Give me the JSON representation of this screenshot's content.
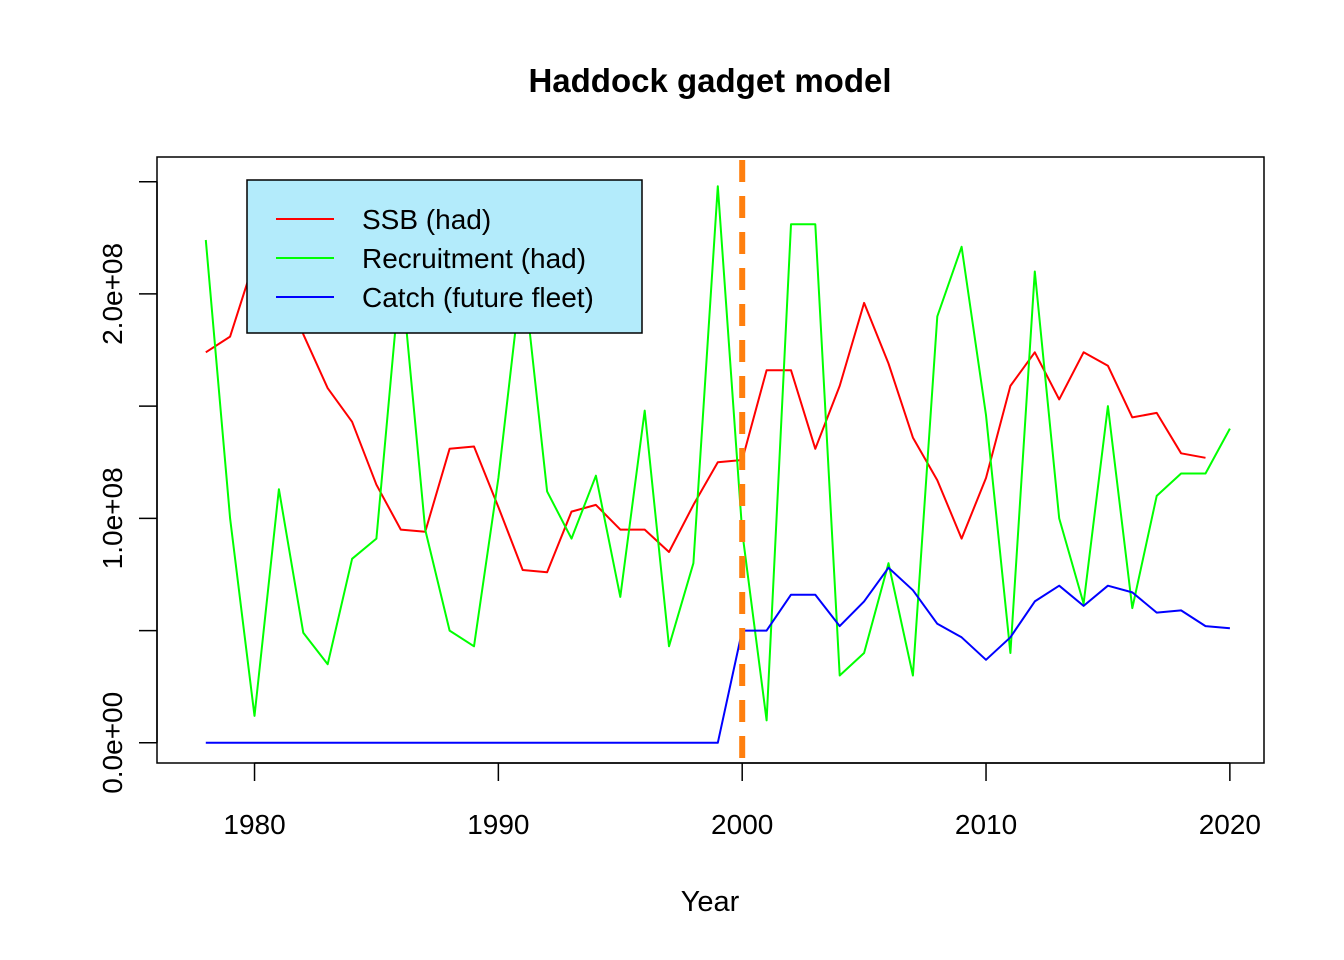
{
  "chart_data": {
    "type": "line",
    "title": "Haddock gadget model",
    "xlabel": "Year",
    "ylabel": "",
    "xlim": [
      1976,
      2021.4
    ],
    "ylim": [
      -9000000,
      261000000
    ],
    "x_ticks": [
      1980,
      1990,
      2000,
      2010,
      2020
    ],
    "x_tick_labels": [
      "1980",
      "1990",
      "2000",
      "2010",
      "2020"
    ],
    "y_ticks": [
      0,
      50000000,
      100000000,
      150000000,
      200000000,
      250000000
    ],
    "y_tick_labels": [
      "0.0e+00",
      "",
      "1.0e+08",
      "",
      "2.0e+08",
      ""
    ],
    "grid": false,
    "legend_position": "top-left",
    "vline": {
      "x": 2000,
      "color": "#ff7f0e",
      "style": "dashed"
    },
    "x": [
      1978,
      1979,
      1980,
      1981,
      1982,
      1983,
      1984,
      1985,
      1986,
      1987,
      1988,
      1989,
      1990,
      1991,
      1992,
      1993,
      1994,
      1995,
      1996,
      1997,
      1998,
      1999,
      2000,
      2001,
      2002,
      2003,
      2004,
      2005,
      2006,
      2007,
      2008,
      2009,
      2010,
      2011,
      2012,
      2013,
      2014,
      2015,
      2016,
      2017,
      2018,
      2019,
      2020
    ],
    "series": [
      {
        "name": "SSB (had)",
        "color": "#ff0000",
        "values": [
          174000000,
          181000000,
          215000000,
          218000000,
          182000000,
          158000000,
          143000000,
          115000000,
          95000000,
          94000000,
          131000000,
          132000000,
          105000000,
          77000000,
          76000000,
          103000000,
          106000000,
          95000000,
          95000000,
          85000000,
          106000000,
          125000000,
          126000000,
          166000000,
          166000000,
          131000000,
          159000000,
          196000000,
          169000000,
          136000000,
          117000000,
          91000000,
          118000000,
          159000000,
          174000000,
          153000000,
          174000000,
          168000000,
          145000000,
          147000000,
          129000000,
          127000000,
          null
        ]
      },
      {
        "name": "Recruitment (had)",
        "color": "#00ff00",
        "values": [
          224000000,
          100000000,
          12000000,
          113000000,
          49000000,
          35000000,
          82000000,
          91000000,
          211000000,
          95000000,
          50000000,
          43000000,
          118000000,
          212000000,
          112000000,
          91000000,
          119000000,
          65000000,
          148000000,
          43000000,
          80000000,
          248000000,
          94000000,
          10000000,
          231000000,
          231000000,
          30000000,
          40000000,
          80000000,
          30000000,
          190000000,
          221000000,
          146000000,
          40000000,
          210000000,
          100000000,
          62000000,
          150000000,
          60000000,
          110000000,
          120000000,
          120000000,
          140000000
        ]
      },
      {
        "name": "Catch (future fleet)",
        "color": "#0000ff",
        "values": [
          0,
          0,
          0,
          0,
          0,
          0,
          0,
          0,
          0,
          0,
          0,
          0,
          0,
          0,
          0,
          0,
          0,
          0,
          0,
          0,
          0,
          0,
          50000000,
          50000000,
          66000000,
          66000000,
          52000000,
          63000000,
          78000000,
          68000000,
          53000000,
          47000000,
          37000000,
          47000000,
          63000000,
          70000000,
          61000000,
          70000000,
          67000000,
          58000000,
          59000000,
          52000000,
          51000000
        ]
      }
    ]
  }
}
